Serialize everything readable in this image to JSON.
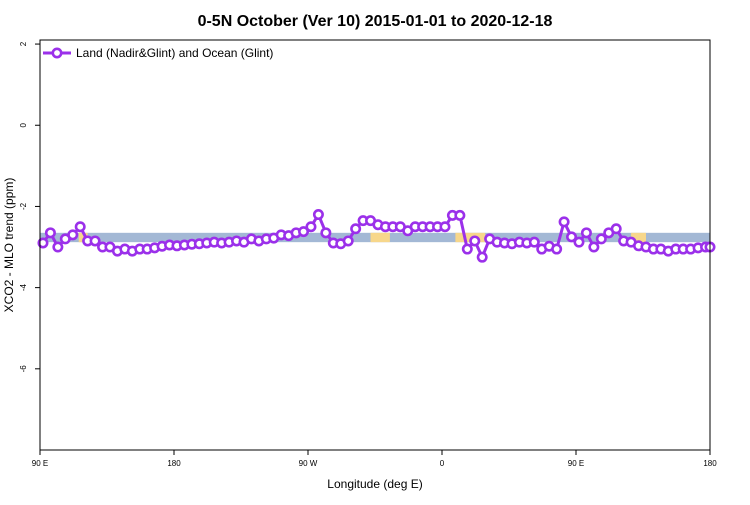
{
  "chart_data": {
    "type": "line",
    "title": "0-5N October (Ver 10)   2015-01-01 to 2020-12-18",
    "xlabel": "Longitude (deg E)",
    "ylabel": "XCO2 - MLO trend (ppm)",
    "xlim": [
      90,
      540
    ],
    "ylim": [
      -8,
      2.1
    ],
    "x_ticks": [
      {
        "value": 90,
        "label": "90 E"
      },
      {
        "value": 180,
        "label": "180"
      },
      {
        "value": 270,
        "label": "90 W"
      },
      {
        "value": 360,
        "label": "0"
      },
      {
        "value": 450,
        "label": "90 E"
      },
      {
        "value": 540,
        "label": "180"
      }
    ],
    "y_ticks": [
      2,
      0,
      -2,
      -4,
      -6
    ],
    "legend": {
      "placement": "top-left"
    },
    "band_color": "#a3b8d5",
    "band_alt_color": "#f7d78b",
    "series_color": "#9b30ea",
    "band": {
      "lower": -2.88,
      "upper": -2.65,
      "alt_segments": [
        [
          116,
          122
        ],
        [
          312,
          325
        ],
        [
          369,
          389
        ],
        [
          487,
          497
        ]
      ]
    },
    "series": [
      {
        "name": "Land (Nadir&Glint) and Ocean (Glint)",
        "x": [
          92,
          97,
          102,
          107,
          112,
          117,
          122,
          127,
          132,
          137,
          142,
          147,
          152,
          157,
          162,
          167,
          172,
          177,
          182,
          187,
          192,
          197,
          202,
          207,
          212,
          217,
          222,
          227,
          232,
          237,
          242,
          247,
          252,
          257,
          262,
          267,
          272,
          277,
          282,
          287,
          292,
          297,
          302,
          307,
          312,
          317,
          322,
          327,
          332,
          337,
          342,
          347,
          352,
          357,
          362,
          367,
          372,
          377,
          382,
          387,
          392,
          397,
          402,
          407,
          412,
          417,
          422,
          427,
          432,
          437,
          442,
          447,
          452,
          457,
          462,
          467,
          472,
          477,
          482,
          487,
          492,
          497,
          502,
          507,
          512,
          517,
          522,
          527,
          532,
          537,
          540
        ],
        "y": [
          -2.9,
          -2.65,
          -3.0,
          -2.8,
          -2.7,
          -2.5,
          -2.85,
          -2.85,
          -3.0,
          -3.0,
          -3.1,
          -3.05,
          -3.1,
          -3.05,
          -3.05,
          -3.02,
          -2.98,
          -2.95,
          -2.97,
          -2.95,
          -2.93,
          -2.92,
          -2.9,
          -2.88,
          -2.9,
          -2.88,
          -2.85,
          -2.88,
          -2.8,
          -2.85,
          -2.8,
          -2.78,
          -2.7,
          -2.72,
          -2.65,
          -2.62,
          -2.5,
          -2.2,
          -2.65,
          -2.9,
          -2.92,
          -2.85,
          -2.55,
          -2.35,
          -2.35,
          -2.45,
          -2.5,
          -2.5,
          -2.5,
          -2.6,
          -2.5,
          -2.5,
          -2.5,
          -2.5,
          -2.5,
          -2.22,
          -2.22,
          -3.05,
          -2.85,
          -3.25,
          -2.8,
          -2.88,
          -2.9,
          -2.92,
          -2.88,
          -2.9,
          -2.88,
          -3.05,
          -2.98,
          -3.05,
          -2.38,
          -2.75,
          -2.88,
          -2.65,
          -3.0,
          -2.8,
          -2.65,
          -2.55,
          -2.85,
          -2.88,
          -2.97,
          -3.0,
          -3.05,
          -3.05,
          -3.1,
          -3.05,
          -3.05,
          -3.05,
          -3.02,
          -3.0,
          -3.0
        ]
      }
    ]
  }
}
